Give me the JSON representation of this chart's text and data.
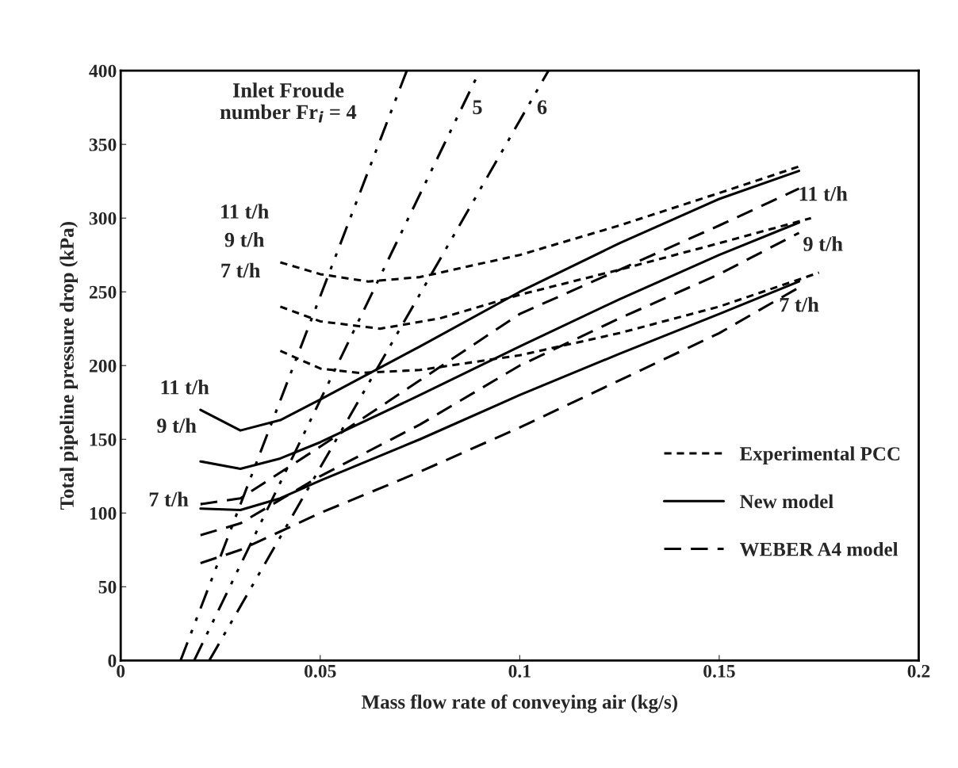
{
  "chart_data": {
    "type": "line",
    "xlabel": "Mass flow rate of conveying air (kg/s)",
    "ylabel": "Total pipeline pressure drop (kPa)",
    "xlim": [
      0,
      0.2
    ],
    "xticks": [
      0,
      0.05,
      0.1,
      0.15,
      0.2
    ],
    "ylim": [
      0,
      400
    ],
    "yticks": [
      0,
      50,
      100,
      150,
      200,
      250,
      300,
      350,
      400
    ],
    "grid": false,
    "legend": "lower right",
    "series": [
      {
        "name": "Experimental PCC",
        "color": "#000000",
        "line_style": "dotted",
        "x": [
          0.04,
          0.05,
          0.062,
          0.075,
          0.1,
          0.125,
          0.15,
          0.17
        ],
        "values": [
          270,
          262,
          257,
          260,
          275,
          295,
          317,
          335
        ]
      },
      {
        "color": "#000000",
        "line_style": "dotted",
        "x": [
          0.04,
          0.05,
          0.065,
          0.08,
          0.1,
          0.125,
          0.15,
          0.173
        ],
        "values": [
          240,
          230,
          225,
          232,
          248,
          265,
          283,
          300
        ]
      },
      {
        "color": "#000000",
        "line_style": "dotted",
        "x": [
          0.04,
          0.05,
          0.06,
          0.075,
          0.1,
          0.125,
          0.15,
          0.175
        ],
        "values": [
          210,
          198,
          195,
          197,
          207,
          222,
          240,
          263
        ]
      },
      {
        "name": "New model",
        "color": "#000000",
        "line_style": "solid",
        "x": [
          0.02,
          0.03,
          0.04,
          0.05,
          0.075,
          0.1,
          0.125,
          0.15,
          0.17
        ],
        "values": [
          170,
          156,
          163,
          177,
          213,
          250,
          283,
          313,
          332
        ]
      },
      {
        "color": "#000000",
        "line_style": "solid",
        "x": [
          0.02,
          0.03,
          0.04,
          0.05,
          0.075,
          0.1,
          0.125,
          0.15,
          0.17
        ],
        "values": [
          135,
          130,
          137,
          148,
          180,
          213,
          245,
          275,
          297
        ]
      },
      {
        "color": "#000000",
        "line_style": "solid",
        "x": [
          0.02,
          0.03,
          0.04,
          0.05,
          0.075,
          0.1,
          0.125,
          0.15,
          0.17
        ],
        "values": [
          103,
          102,
          110,
          122,
          150,
          180,
          208,
          235,
          257
        ]
      },
      {
        "name": "WEBER A4 model",
        "color": "#000000",
        "line_style": "dashed",
        "x": [
          0.02,
          0.03,
          0.05,
          0.075,
          0.1,
          0.125,
          0.15,
          0.17
        ],
        "values": [
          106,
          110,
          145,
          190,
          235,
          265,
          295,
          320
        ]
      },
      {
        "color": "#000000",
        "line_style": "dashed",
        "x": [
          0.02,
          0.03,
          0.05,
          0.075,
          0.1,
          0.125,
          0.15,
          0.17
        ],
        "values": [
          85,
          93,
          125,
          160,
          200,
          232,
          262,
          290
        ]
      },
      {
        "color": "#000000",
        "line_style": "dashed",
        "x": [
          0.02,
          0.03,
          0.05,
          0.075,
          0.1,
          0.125,
          0.15,
          0.17
        ],
        "values": [
          66,
          75,
          100,
          128,
          158,
          190,
          222,
          253
        ]
      },
      {
        "color": "#000000",
        "line_style": "dashdot",
        "x": [
          0.015,
          0.0717
        ],
        "values": [
          0,
          400
        ]
      },
      {
        "color": "#000000",
        "line_style": "dashdot",
        "x": [
          0.0184,
          0.09
        ],
        "values": [
          0,
          400
        ]
      },
      {
        "color": "#000000",
        "line_style": "dashdot",
        "x": [
          0.0222,
          0.1072
        ],
        "values": [
          0,
          400
        ]
      }
    ],
    "annotations": [
      "Inlet Froude\nnumber Fr$_{i}$ = 4",
      "5",
      "6",
      "11 t/h",
      "9 t/h",
      "7 t/h",
      "11 t/h",
      "9 t/h",
      "7 t/h",
      "11 t/h",
      "9 t/h",
      "7 t/h"
    ]
  }
}
